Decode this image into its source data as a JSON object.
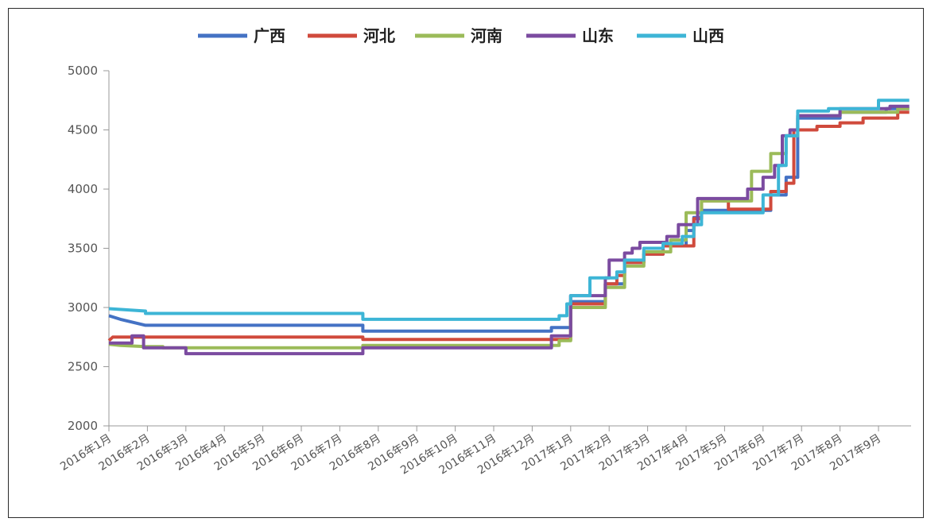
{
  "chart_data": {
    "type": "line",
    "title": "",
    "xlabel": "",
    "ylabel": "",
    "ylim": [
      2000,
      5000
    ],
    "yticks": [
      2000,
      2500,
      3000,
      3500,
      4000,
      4500,
      5000
    ],
    "xlim": [
      0,
      20.8
    ],
    "categories": [
      "2016年1月",
      "2016年2月",
      "2016年3月",
      "2016年4月",
      "2016年5月",
      "2016年6月",
      "2016年7月",
      "2016年8月",
      "2016年9月",
      "2016年10月",
      "2016年11月",
      "2016年12月",
      "2017年1月",
      "2017年2月",
      "2017年3月",
      "2017年4月",
      "2017年5月",
      "2017年6月",
      "2017年7月",
      "2017年8月",
      "2017年9月"
    ],
    "legend_position": "top",
    "series": [
      {
        "name": "广西",
        "color": "#4472C4",
        "points": [
          [
            0,
            2930
          ],
          [
            0.3,
            2900
          ],
          [
            0.95,
            2850
          ],
          [
            6.6,
            2850
          ],
          [
            6.6,
            2800
          ],
          [
            11.5,
            2800
          ],
          [
            11.5,
            2830
          ],
          [
            12.0,
            2830
          ],
          [
            12.0,
            3050
          ],
          [
            12.9,
            3050
          ],
          [
            12.9,
            3200
          ],
          [
            13.4,
            3200
          ],
          [
            13.4,
            3380
          ],
          [
            13.9,
            3380
          ],
          [
            13.9,
            3450
          ],
          [
            14.4,
            3450
          ],
          [
            14.4,
            3520
          ],
          [
            15.0,
            3520
          ],
          [
            15.0,
            3650
          ],
          [
            15.2,
            3650
          ],
          [
            15.2,
            3760
          ],
          [
            15.4,
            3760
          ],
          [
            15.4,
            3820
          ],
          [
            17.2,
            3820
          ],
          [
            17.2,
            3950
          ],
          [
            17.6,
            3950
          ],
          [
            17.6,
            4100
          ],
          [
            17.9,
            4100
          ],
          [
            17.9,
            4600
          ],
          [
            19.0,
            4600
          ],
          [
            19.0,
            4650
          ],
          [
            20.2,
            4650
          ],
          [
            20.2,
            4680
          ],
          [
            20.8,
            4680
          ]
        ]
      },
      {
        "name": "河北",
        "color": "#D04A3C",
        "points": [
          [
            0,
            2720
          ],
          [
            0.1,
            2750
          ],
          [
            6.6,
            2750
          ],
          [
            6.6,
            2730
          ],
          [
            12.0,
            2730
          ],
          [
            12.0,
            3030
          ],
          [
            12.9,
            3030
          ],
          [
            12.9,
            3200
          ],
          [
            13.2,
            3200
          ],
          [
            13.2,
            3270
          ],
          [
            13.4,
            3270
          ],
          [
            13.4,
            3380
          ],
          [
            13.9,
            3380
          ],
          [
            13.9,
            3450
          ],
          [
            14.4,
            3450
          ],
          [
            14.4,
            3520
          ],
          [
            15.2,
            3520
          ],
          [
            15.2,
            3750
          ],
          [
            15.4,
            3750
          ],
          [
            15.4,
            3900
          ],
          [
            16.1,
            3900
          ],
          [
            16.1,
            3830
          ],
          [
            17.2,
            3830
          ],
          [
            17.2,
            3980
          ],
          [
            17.6,
            3980
          ],
          [
            17.6,
            4050
          ],
          [
            17.8,
            4050
          ],
          [
            17.8,
            4500
          ],
          [
            18.4,
            4500
          ],
          [
            18.4,
            4530
          ],
          [
            19.0,
            4530
          ],
          [
            19.0,
            4560
          ],
          [
            19.6,
            4560
          ],
          [
            19.6,
            4600
          ],
          [
            20.5,
            4600
          ],
          [
            20.5,
            4650
          ],
          [
            20.8,
            4650
          ]
        ]
      },
      {
        "name": "河南",
        "color": "#9BBB59",
        "points": [
          [
            0,
            2690
          ],
          [
            0.3,
            2680
          ],
          [
            0.95,
            2670
          ],
          [
            1.4,
            2670
          ],
          [
            1.4,
            2660
          ],
          [
            6.6,
            2660
          ],
          [
            6.6,
            2680
          ],
          [
            11.7,
            2680
          ],
          [
            11.7,
            2720
          ],
          [
            12.0,
            2720
          ],
          [
            12.0,
            3000
          ],
          [
            12.9,
            3000
          ],
          [
            12.9,
            3170
          ],
          [
            13.4,
            3170
          ],
          [
            13.4,
            3350
          ],
          [
            13.9,
            3350
          ],
          [
            13.9,
            3470
          ],
          [
            14.6,
            3470
          ],
          [
            14.6,
            3570
          ],
          [
            15.0,
            3570
          ],
          [
            15.0,
            3800
          ],
          [
            15.4,
            3800
          ],
          [
            15.4,
            3900
          ],
          [
            16.7,
            3900
          ],
          [
            16.7,
            4150
          ],
          [
            17.2,
            4150
          ],
          [
            17.2,
            4300
          ],
          [
            17.6,
            4300
          ],
          [
            17.6,
            4450
          ],
          [
            17.9,
            4450
          ],
          [
            17.9,
            4620
          ],
          [
            19.0,
            4620
          ],
          [
            19.0,
            4650
          ],
          [
            20.5,
            4650
          ],
          [
            20.5,
            4680
          ],
          [
            20.8,
            4680
          ]
        ]
      },
      {
        "name": "山东",
        "color": "#7B4BA0",
        "points": [
          [
            0,
            2700
          ],
          [
            0.6,
            2700
          ],
          [
            0.6,
            2760
          ],
          [
            0.9,
            2760
          ],
          [
            0.9,
            2660
          ],
          [
            2.0,
            2660
          ],
          [
            2.0,
            2610
          ],
          [
            6.6,
            2610
          ],
          [
            6.6,
            2660
          ],
          [
            11.5,
            2660
          ],
          [
            11.5,
            2760
          ],
          [
            12.0,
            2760
          ],
          [
            12.0,
            3100
          ],
          [
            12.9,
            3100
          ],
          [
            12.9,
            3250
          ],
          [
            13.0,
            3250
          ],
          [
            13.0,
            3400
          ],
          [
            13.4,
            3400
          ],
          [
            13.4,
            3460
          ],
          [
            13.6,
            3460
          ],
          [
            13.6,
            3500
          ],
          [
            13.8,
            3500
          ],
          [
            13.8,
            3550
          ],
          [
            14.5,
            3550
          ],
          [
            14.5,
            3600
          ],
          [
            14.8,
            3600
          ],
          [
            14.8,
            3700
          ],
          [
            15.3,
            3700
          ],
          [
            15.3,
            3920
          ],
          [
            16.6,
            3920
          ],
          [
            16.6,
            4000
          ],
          [
            17.0,
            4000
          ],
          [
            17.0,
            4100
          ],
          [
            17.3,
            4100
          ],
          [
            17.3,
            4200
          ],
          [
            17.5,
            4200
          ],
          [
            17.5,
            4450
          ],
          [
            17.7,
            4450
          ],
          [
            17.7,
            4500
          ],
          [
            17.9,
            4500
          ],
          [
            17.9,
            4620
          ],
          [
            19.0,
            4620
          ],
          [
            19.0,
            4680
          ],
          [
            20.3,
            4680
          ],
          [
            20.3,
            4700
          ],
          [
            20.8,
            4700
          ]
        ]
      },
      {
        "name": "山西",
        "color": "#3DB5D6",
        "points": [
          [
            0,
            2990
          ],
          [
            0.95,
            2970
          ],
          [
            0.95,
            2950
          ],
          [
            6.6,
            2950
          ],
          [
            6.6,
            2900
          ],
          [
            11.7,
            2900
          ],
          [
            11.7,
            2930
          ],
          [
            11.9,
            2930
          ],
          [
            11.9,
            3030
          ],
          [
            12.0,
            3030
          ],
          [
            12.0,
            3100
          ],
          [
            12.5,
            3100
          ],
          [
            12.5,
            3250
          ],
          [
            13.2,
            3250
          ],
          [
            13.2,
            3300
          ],
          [
            13.4,
            3300
          ],
          [
            13.4,
            3400
          ],
          [
            13.9,
            3400
          ],
          [
            13.9,
            3500
          ],
          [
            14.4,
            3500
          ],
          [
            14.4,
            3540
          ],
          [
            14.9,
            3540
          ],
          [
            14.9,
            3600
          ],
          [
            15.2,
            3600
          ],
          [
            15.2,
            3700
          ],
          [
            15.4,
            3700
          ],
          [
            15.4,
            3800
          ],
          [
            17.0,
            3800
          ],
          [
            17.0,
            3950
          ],
          [
            17.4,
            3950
          ],
          [
            17.4,
            4200
          ],
          [
            17.6,
            4200
          ],
          [
            17.6,
            4450
          ],
          [
            17.9,
            4450
          ],
          [
            17.9,
            4660
          ],
          [
            18.7,
            4660
          ],
          [
            18.7,
            4680
          ],
          [
            20.0,
            4680
          ],
          [
            20.0,
            4750
          ],
          [
            20.8,
            4750
          ]
        ]
      }
    ]
  }
}
